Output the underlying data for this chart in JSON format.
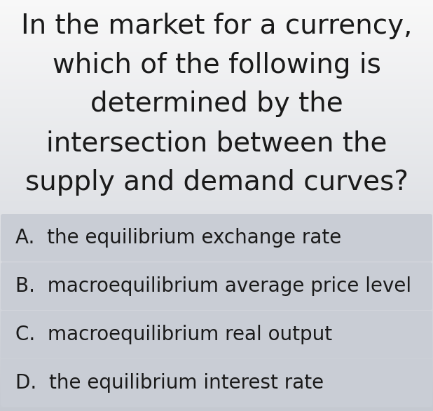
{
  "question_lines": [
    "In the market for a currency,",
    "which of the following is",
    "determined by the",
    "intersection between the",
    "supply and demand curves?"
  ],
  "options": [
    "A.  the equilibrium exchange rate",
    "B.  macroequilibrium average price level",
    "C.  macroequilibrium real output",
    "D.  the equilibrium interest rate"
  ],
  "bg_color_top": "#f5f5f5",
  "bg_color_bottom": "#c9cdd5",
  "option_bg_color": "#c9cdd5",
  "question_font_size": 28,
  "option_font_size": 20,
  "question_text_color": "#1a1a1a",
  "option_text_color": "#1a1a1a",
  "fig_width": 6.18,
  "fig_height": 5.86,
  "dpi": 100
}
